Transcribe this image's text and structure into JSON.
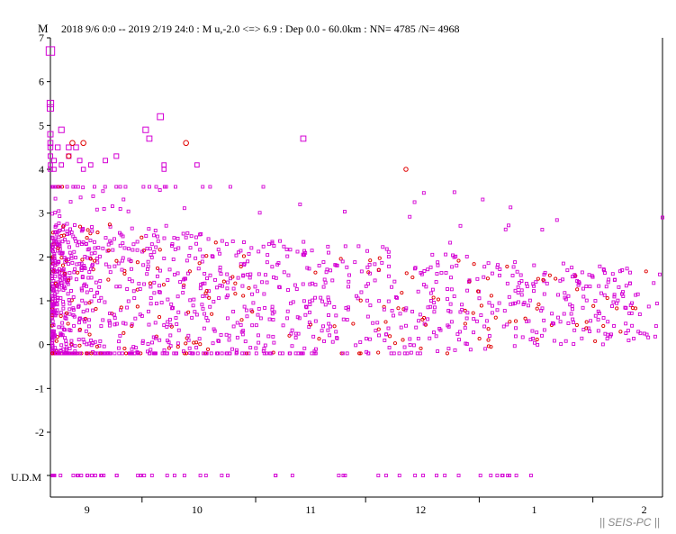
{
  "chart_data": {
    "type": "scatter",
    "title": "2018 9/6 0:0 -- 2019 2/19 24:0 : M u,-2.0 <=> 6.9 : Dep 0.0 - 60.0km : NN= 4785 /N= 4968",
    "ylabel": "M",
    "xlabel": "",
    "ylim": [
      -2.5,
      7
    ],
    "yticks": [
      "7",
      "6",
      "5",
      "4",
      "3",
      "2",
      "1",
      "0",
      "-1",
      "-2"
    ],
    "undetermined_label": "U.D.M",
    "xlim": [
      "2018-09-06",
      "2019-02-20"
    ],
    "month_labels": [
      {
        "date": "2018-09-16",
        "label": "9"
      },
      {
        "date": "2018-10-16",
        "label": "10"
      },
      {
        "date": "2018-11-16",
        "label": "11"
      },
      {
        "date": "2018-12-16",
        "label": "12"
      },
      {
        "date": "2019-01-16",
        "label": "1"
      },
      {
        "date": "2019-02-15",
        "label": "2"
      }
    ],
    "month_ticks": [
      "2018-10-01",
      "2018-11-01",
      "2018-12-01",
      "2019-01-01",
      "2019-02-01"
    ],
    "grid": false,
    "colors": {
      "square_marker": "#d400d4",
      "circle_marker": "#e00000"
    },
    "series": [
      {
        "marker": "square",
        "points": [
          {
            "x": "2018-09-06",
            "y": 6.7
          },
          {
            "x": "2018-09-06",
            "y": 5.5
          },
          {
            "x": "2018-09-06",
            "y": 5.4
          },
          {
            "x": "2018-09-06",
            "y": 4.8
          },
          {
            "x": "2018-09-06",
            "y": 4.6
          },
          {
            "x": "2018-09-06",
            "y": 4.5
          },
          {
            "x": "2018-09-06",
            "y": 4.3
          },
          {
            "x": "2018-09-06",
            "y": 4.1
          },
          {
            "x": "2018-09-06",
            "y": 4.0
          },
          {
            "x": "2018-09-07",
            "y": 4.2
          },
          {
            "x": "2018-09-07",
            "y": 4.0
          },
          {
            "x": "2018-09-08",
            "y": 4.5
          },
          {
            "x": "2018-09-09",
            "y": 4.1
          },
          {
            "x": "2018-09-09",
            "y": 4.9
          },
          {
            "x": "2018-09-11",
            "y": 4.3
          },
          {
            "x": "2018-09-11",
            "y": 4.5
          },
          {
            "x": "2018-09-13",
            "y": 4.5
          },
          {
            "x": "2018-09-14",
            "y": 4.2
          },
          {
            "x": "2018-09-15",
            "y": 4.0
          },
          {
            "x": "2018-09-17",
            "y": 4.1
          },
          {
            "x": "2018-09-21",
            "y": 4.2
          },
          {
            "x": "2018-09-24",
            "y": 4.3
          },
          {
            "x": "2018-10-02",
            "y": 4.9
          },
          {
            "x": "2018-10-03",
            "y": 4.7
          },
          {
            "x": "2018-10-06",
            "y": 5.2
          },
          {
            "x": "2018-10-07",
            "y": 4.1
          },
          {
            "x": "2018-10-07",
            "y": 4.0
          },
          {
            "x": "2018-10-16",
            "y": 4.1
          },
          {
            "x": "2018-11-14",
            "y": 4.7
          },
          {
            "x": "2019-02-20",
            "y": 2.9
          }
        ]
      },
      {
        "marker": "circle",
        "points": [
          {
            "x": "2018-09-12",
            "y": 4.6
          },
          {
            "x": "2018-09-15",
            "y": 4.6
          },
          {
            "x": "2018-09-11",
            "y": 4.3
          },
          {
            "x": "2018-10-13",
            "y": 4.6
          },
          {
            "x": "2018-12-12",
            "y": 4.0
          }
        ]
      }
    ],
    "background_cloud": {
      "description_of_density": "dense",
      "note": ""
    },
    "watermark": "|| SEIS-PC ||"
  }
}
